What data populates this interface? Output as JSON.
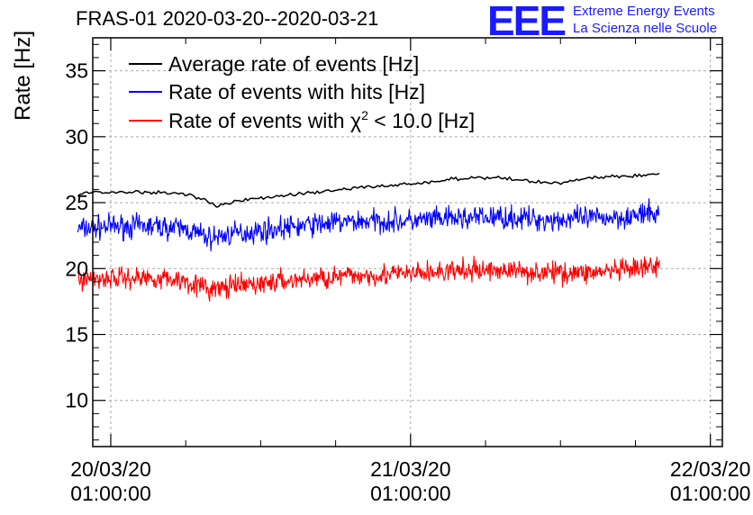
{
  "header": {
    "title": "FRAS-01 2020-03-20--2020-03-21"
  },
  "logo": {
    "mark": "EEE",
    "line1": "Extreme Energy Events",
    "line2": "La Scienza nelle Scuole",
    "color": "#1a1aff"
  },
  "chart_data": {
    "type": "line",
    "title": "FRAS-01 2020-03-20--2020-03-21",
    "xlabel": "",
    "ylabel": "Rate [Hz]",
    "xlim": [
      -0.06,
      2.04
    ],
    "ylim": [
      6.5,
      37.5
    ],
    "grid": true,
    "legend_position": "top-left",
    "yticks": [
      10,
      15,
      20,
      25,
      30,
      35
    ],
    "xticks": [
      {
        "x": 0,
        "date": "20/03/20",
        "time": "01:00:00"
      },
      {
        "x": 1,
        "date": "21/03/20",
        "time": "01:00:00"
      },
      {
        "x": 2,
        "date": "22/03/20",
        "time": "01:00:00"
      }
    ],
    "x_range": [
      -0.11,
      1.83
    ],
    "series": [
      {
        "name": "Average rate of events [Hz]",
        "color": "#000000",
        "noise": 0.12,
        "x": [
          -0.11,
          -0.05,
          0.1,
          0.25,
          0.3,
          0.35,
          0.45,
          0.55,
          0.7,
          0.85,
          1.0,
          1.15,
          1.3,
          1.4,
          1.5,
          1.6,
          1.7,
          1.75,
          1.83
        ],
        "y": [
          25.6,
          25.8,
          25.8,
          25.7,
          25.3,
          24.8,
          25.2,
          25.5,
          25.8,
          26.2,
          26.4,
          26.8,
          26.9,
          26.6,
          26.5,
          26.9,
          27.0,
          27.0,
          27.2
        ]
      },
      {
        "name": "Rate of events with hits [Hz]",
        "color": "#0000ff",
        "noise": 0.75,
        "x": [
          -0.11,
          0.0,
          0.15,
          0.25,
          0.33,
          0.4,
          0.55,
          0.7,
          0.85,
          1.0,
          1.15,
          1.3,
          1.45,
          1.6,
          1.75,
          1.83
        ],
        "y": [
          23.0,
          23.2,
          23.2,
          23.0,
          22.3,
          22.6,
          23.0,
          23.4,
          23.6,
          23.6,
          23.8,
          23.9,
          23.7,
          23.8,
          24.0,
          24.2
        ]
      },
      {
        "name": "Rate of events with χ² < 10.0 [Hz]",
        "label_parts": {
          "pre": "Rate of events with ",
          "chi": "χ",
          "sup": "2",
          "post": " < 10.0 [Hz]"
        },
        "color": "#ff0000",
        "noise": 0.7,
        "x": [
          -0.11,
          0.0,
          0.15,
          0.25,
          0.33,
          0.4,
          0.55,
          0.7,
          0.85,
          1.0,
          1.15,
          1.3,
          1.45,
          1.6,
          1.75,
          1.83
        ],
        "y": [
          19.2,
          19.3,
          19.3,
          19.1,
          18.4,
          18.6,
          19.0,
          19.3,
          19.5,
          19.6,
          19.8,
          19.9,
          19.7,
          19.7,
          19.9,
          20.2
        ]
      }
    ]
  }
}
